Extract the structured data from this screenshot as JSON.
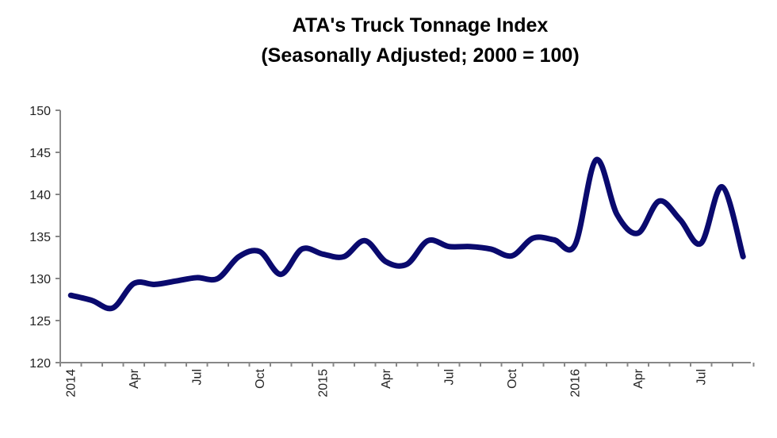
{
  "chart_data": {
    "type": "line",
    "title": "ATA's Truck Tonnage Index",
    "subtitle": "(Seasonally Adjusted; 2000 = 100)",
    "xlabel": "",
    "ylabel": "",
    "ylim": [
      120,
      150
    ],
    "yticks": [
      120,
      125,
      130,
      135,
      140,
      145,
      150
    ],
    "grid": false,
    "x": [
      "Jan 2014",
      "Feb 2014",
      "Mar 2014",
      "Apr 2014",
      "May 2014",
      "Jun 2014",
      "Jul 2014",
      "Aug 2014",
      "Sep 2014",
      "Oct 2014",
      "Nov 2014",
      "Dec 2014",
      "Jan 2015",
      "Feb 2015",
      "Mar 2015",
      "Apr 2015",
      "May 2015",
      "Jun 2015",
      "Jul 2015",
      "Aug 2015",
      "Sep 2015",
      "Oct 2015",
      "Nov 2015",
      "Dec 2015",
      "Jan 2016",
      "Feb 2016",
      "Mar 2016",
      "Apr 2016",
      "May 2016",
      "Jun 2016",
      "Jul 2016",
      "Aug 2016",
      "Sep 2016"
    ],
    "xtick_labels": [
      {
        "index": 0,
        "label": "2014"
      },
      {
        "index": 3,
        "label": "Apr"
      },
      {
        "index": 6,
        "label": "Jul"
      },
      {
        "index": 9,
        "label": "Oct"
      },
      {
        "index": 12,
        "label": "2015"
      },
      {
        "index": 15,
        "label": "Apr"
      },
      {
        "index": 18,
        "label": "Jul"
      },
      {
        "index": 21,
        "label": "Oct"
      },
      {
        "index": 24,
        "label": "2016"
      },
      {
        "index": 27,
        "label": "Apr"
      },
      {
        "index": 30,
        "label": "Jul"
      }
    ],
    "series": [
      {
        "name": "Truck Tonnage Index",
        "color": "#0a0a6e",
        "values": [
          128.0,
          127.4,
          126.5,
          129.4,
          129.3,
          129.7,
          130.1,
          130.0,
          132.6,
          133.2,
          130.5,
          133.5,
          132.9,
          132.6,
          134.5,
          132.0,
          131.7,
          134.5,
          133.8,
          133.8,
          133.5,
          132.7,
          134.8,
          134.6,
          134.0,
          144.1,
          137.6,
          135.4,
          139.2,
          137.0,
          134.2,
          140.9,
          132.6
        ]
      }
    ]
  }
}
